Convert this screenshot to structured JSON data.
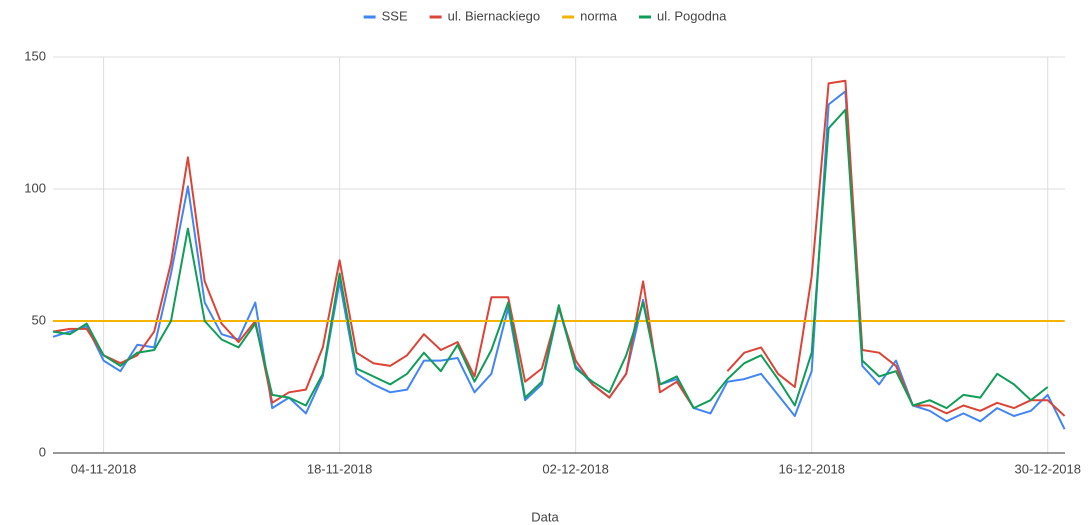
{
  "chart_data": {
    "type": "line",
    "x_label": "Data",
    "categories": [
      null,
      null,
      null,
      "04-11-2018",
      null,
      null,
      null,
      null,
      null,
      null,
      null,
      null,
      null,
      null,
      null,
      null,
      null,
      "18-11-2018",
      null,
      null,
      null,
      null,
      null,
      null,
      null,
      null,
      null,
      null,
      null,
      null,
      null,
      "02-12-2018",
      null,
      null,
      null,
      null,
      null,
      null,
      null,
      null,
      null,
      null,
      null,
      null,
      null,
      "16-12-2018",
      null,
      null,
      null,
      null,
      null,
      null,
      null,
      null,
      null,
      null,
      null,
      null,
      null,
      "30-12-2018",
      null
    ],
    "ylim": [
      0,
      150
    ],
    "yticks": [
      0,
      50,
      100,
      150
    ],
    "grid": true,
    "legend": "top",
    "series": [
      {
        "name": "SSE",
        "color": "#4285f4",
        "values": [
          44,
          46,
          48,
          35,
          31,
          41,
          40,
          68,
          101,
          57,
          45,
          43,
          57,
          17,
          21,
          15,
          29,
          65,
          30,
          26,
          23,
          24,
          35,
          35,
          36,
          23,
          30,
          55,
          20,
          26,
          55,
          33,
          26,
          21,
          30,
          58,
          26,
          28,
          17,
          15,
          27,
          28,
          30,
          22,
          14,
          31,
          132,
          137,
          33,
          26,
          35,
          18,
          16,
          12,
          15,
          12,
          17,
          14,
          16,
          22,
          9
        ]
      },
      {
        "name": "ul. Biernackiego",
        "color": "#db4437",
        "values": [
          46,
          47,
          47,
          37,
          34,
          37,
          46,
          72,
          112,
          65,
          49,
          42,
          50,
          19,
          23,
          24,
          40,
          73,
          38,
          34,
          33,
          37,
          45,
          39,
          42,
          29,
          59,
          59,
          27,
          32,
          55,
          35,
          26,
          21,
          30,
          65,
          23,
          27,
          17,
          null,
          31,
          38,
          40,
          30,
          25,
          67,
          140,
          141,
          39,
          38,
          33,
          18,
          18,
          15,
          18,
          16,
          19,
          17,
          20,
          20,
          14
        ]
      },
      {
        "name": "norma",
        "color": "#f4b400",
        "values": [
          50,
          50,
          50,
          50,
          50,
          50,
          50,
          50,
          50,
          50,
          50,
          50,
          50,
          50,
          50,
          50,
          50,
          50,
          50,
          50,
          50,
          50,
          50,
          50,
          50,
          50,
          50,
          50,
          50,
          50,
          50,
          50,
          50,
          50,
          50,
          50,
          50,
          50,
          50,
          50,
          50,
          50,
          50,
          50,
          50,
          50,
          50,
          50,
          50,
          50,
          50,
          50,
          50,
          50,
          50,
          50,
          50,
          50,
          50,
          50,
          50
        ]
      },
      {
        "name": "ul. Pogodna",
        "color": "#0f9d58",
        "values": [
          46,
          45,
          49,
          37,
          33,
          38,
          39,
          50,
          85,
          50,
          43,
          40,
          49,
          22,
          21,
          18,
          30,
          68,
          32,
          29,
          26,
          30,
          38,
          31,
          41,
          27,
          39,
          57,
          21,
          27,
          56,
          32,
          27,
          23,
          37,
          57,
          26,
          29,
          17,
          20,
          28,
          34,
          37,
          28,
          18,
          38,
          123,
          130,
          35,
          29,
          31,
          18,
          20,
          17,
          22,
          21,
          30,
          26,
          20,
          25,
          null
        ]
      }
    ]
  }
}
